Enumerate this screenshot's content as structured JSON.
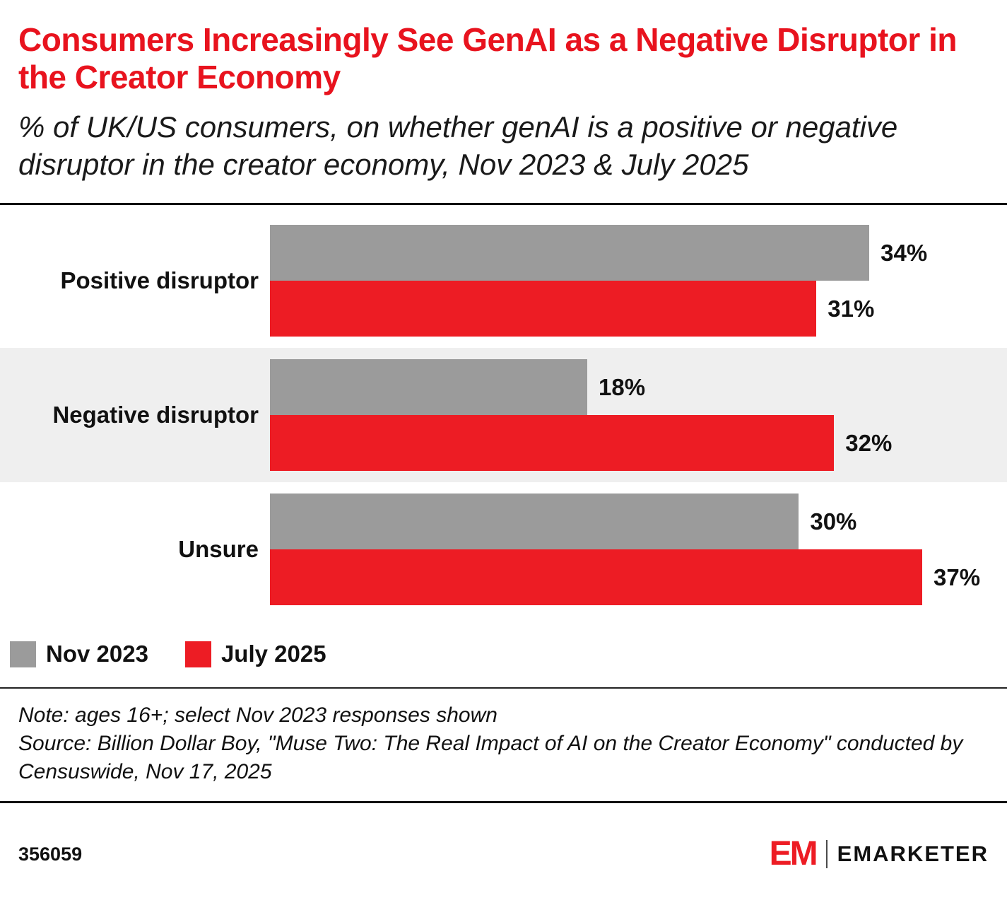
{
  "header": {
    "title": "Consumers Increasingly See GenAI as a Negative Disruptor in the Creator Economy",
    "subtitle": "% of UK/US consumers, on whether genAI is a positive or negative disruptor in the creator economy, Nov 2023 & July 2025"
  },
  "chart_data": {
    "type": "bar",
    "orientation": "horizontal",
    "categories": [
      "Positive disruptor",
      "Negative disruptor",
      "Unsure"
    ],
    "series": [
      {
        "name": "Nov 2023",
        "color": "#9b9b9b",
        "values": [
          34,
          18,
          30
        ]
      },
      {
        "name": "July 2025",
        "color": "#ed1c24",
        "values": [
          31,
          32,
          37
        ]
      }
    ],
    "value_suffix": "%",
    "xlim": [
      0,
      40
    ],
    "grid": false,
    "legend_position": "bottom-left",
    "shaded_category_index": 1
  },
  "colors": {
    "title_red": "#e8131e",
    "bar_red": "#ed1c24",
    "bar_gray": "#9b9b9b",
    "row_band_gray": "#efefef"
  },
  "notes": {
    "note": "Note: ages 16+; select Nov 2023 responses shown",
    "source": "Source: Billion Dollar Boy, \"Muse Two: The Real Impact of AI on the Creator Economy\" conducted by Censuswide, Nov 17, 2025"
  },
  "footer": {
    "chart_id": "356059",
    "logo_mark": "EM",
    "logo_text": "EMARKETER"
  }
}
